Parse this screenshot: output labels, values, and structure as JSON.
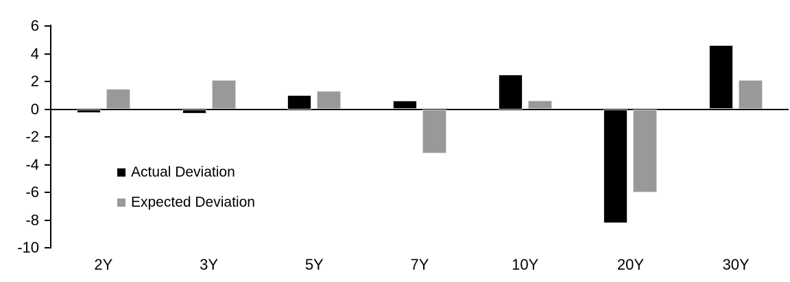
{
  "chart_data": {
    "type": "bar",
    "title": "",
    "xlabel": "",
    "ylabel": "",
    "categories": [
      "2Y",
      "3Y",
      "5Y",
      "7Y",
      "10Y",
      "20Y",
      "30Y"
    ],
    "series": [
      {
        "name": "Actual Deviation",
        "color": "#000000",
        "values": [
          -0.25,
          -0.3,
          1.0,
          0.6,
          2.5,
          -8.2,
          4.6
        ]
      },
      {
        "name": "Expected Deviation",
        "color": "#999999",
        "values": [
          1.45,
          2.1,
          1.3,
          -3.2,
          0.6,
          -6.0,
          2.1
        ]
      }
    ],
    "ylim": [
      -10,
      6
    ],
    "y_ticks": [
      6,
      4,
      2,
      0,
      -2,
      -4,
      -6,
      -8,
      -10
    ],
    "grid": "off",
    "legend_position": "inside-left-middle",
    "axis_color": "#000000",
    "background_color": "#ffffff"
  }
}
